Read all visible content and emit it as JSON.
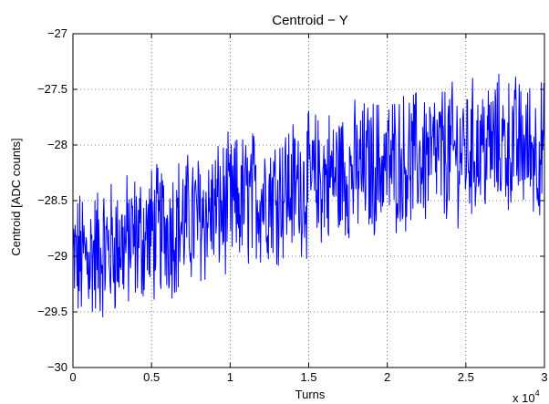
{
  "chart_data": {
    "type": "line",
    "title": "Centroid − Y",
    "xlabel": "Turns",
    "ylabel": "Centroid [ADC counts]",
    "xlim": [
      0,
      30000
    ],
    "ylim": [
      -30,
      -27
    ],
    "grid": true,
    "x_ticks": [
      "0",
      "0.5",
      "1",
      "1.5",
      "2",
      "2.5",
      "3"
    ],
    "x_tick_values": [
      0,
      5000,
      10000,
      15000,
      20000,
      25000,
      30000
    ],
    "x_exponent_base": "x 10",
    "x_exponent_power": "4",
    "y_ticks": [
      "−30",
      "−29.5",
      "−29",
      "−28.5",
      "−28",
      "−27.5",
      "−27"
    ],
    "y_tick_values": [
      -30,
      -29.5,
      -29,
      -28.5,
      -28,
      -27.5,
      -27
    ],
    "series": [
      {
        "color": "#0000ff",
        "style": "noisy line",
        "x": [
          0,
          1000,
          2000,
          3000,
          4000,
          5000,
          6000,
          7000,
          8000,
          9000,
          10000,
          11000,
          12000,
          13000,
          14000,
          15000,
          16000,
          17000,
          18000,
          19000,
          20000,
          21000,
          22000,
          23000,
          24000,
          25000,
          26000,
          27000,
          28000,
          29000,
          30000
        ],
        "trend": [
          -29.05,
          -29.0,
          -28.95,
          -28.9,
          -28.85,
          -28.8,
          -28.75,
          -28.7,
          -28.65,
          -28.6,
          -28.55,
          -28.5,
          -28.45,
          -28.42,
          -28.38,
          -28.35,
          -28.3,
          -28.27,
          -28.24,
          -28.2,
          -28.17,
          -28.15,
          -28.12,
          -28.1,
          -28.07,
          -28.05,
          -28.02,
          -28.0,
          -28.0,
          -28.02,
          -28.05
        ],
        "amplitude": 0.55
      }
    ]
  }
}
